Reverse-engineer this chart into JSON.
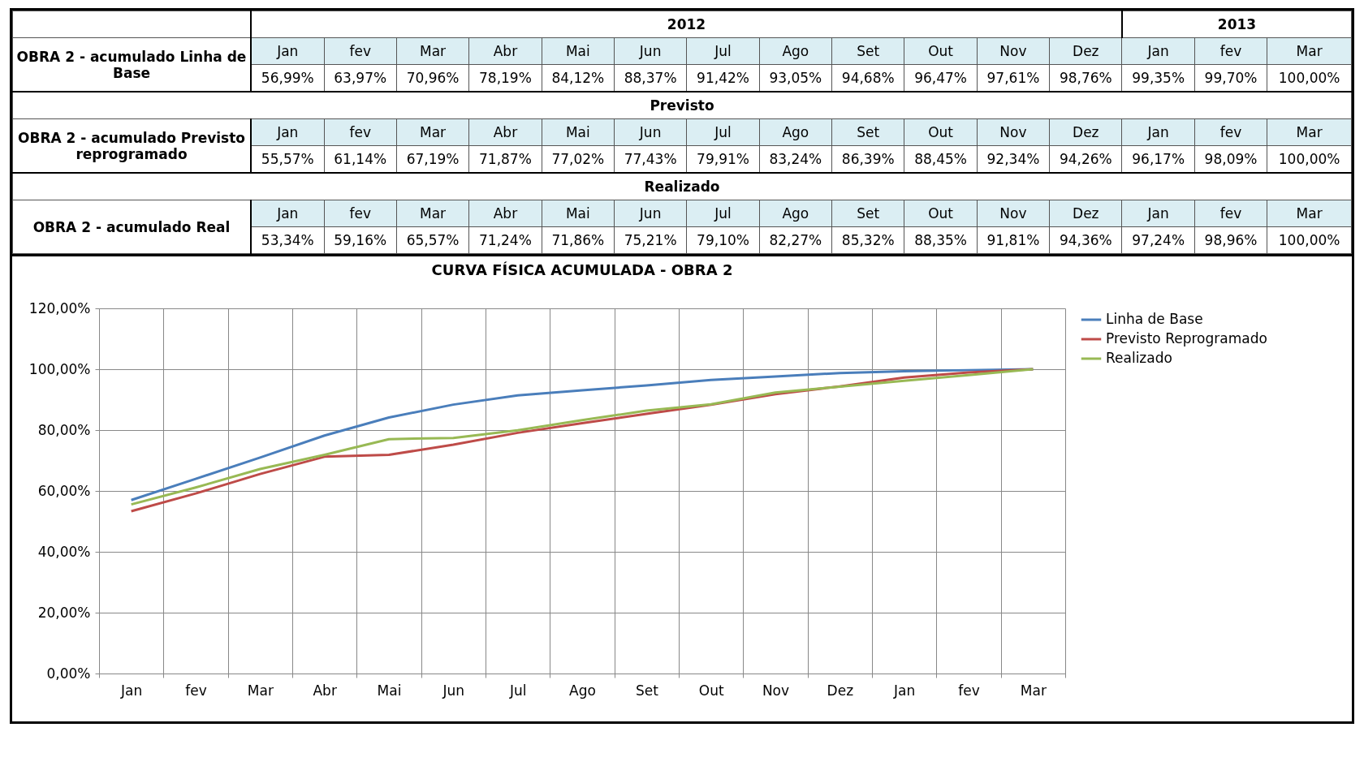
{
  "chart_data": [
    {
      "type": "other",
      "categories": [
        "Jan",
        "fev",
        "Mar",
        "Abr",
        "Mai",
        "Jun",
        "Jul",
        "Ago",
        "Set",
        "Out",
        "Nov",
        "Dez",
        "Jan",
        "fev",
        "Mar"
      ],
      "annotations": [
        "2012",
        "2013",
        "Previsto",
        "Realizado"
      ],
      "series": [
        {
          "name": "OBRA 2 - acumulado Linha de Base",
          "values": [
            56.99,
            63.97,
            70.96,
            78.19,
            84.12,
            88.37,
            91.42,
            93.05,
            94.68,
            96.47,
            97.61,
            98.76,
            99.35,
            99.7,
            100.0
          ],
          "value_labels": [
            "56,99%",
            "63,97%",
            "70,96%",
            "78,19%",
            "84,12%",
            "88,37%",
            "91,42%",
            "93,05%",
            "94,68%",
            "96,47%",
            "97,61%",
            "98,76%",
            "99,35%",
            "99,70%",
            "100,00%"
          ]
        },
        {
          "name": "OBRA 2 - acumulado Previsto reprogramado",
          "values": [
            55.57,
            61.14,
            67.19,
            71.87,
            77.02,
            77.43,
            79.91,
            83.24,
            86.39,
            88.45,
            92.34,
            94.26,
            96.17,
            98.09,
            100.0
          ],
          "value_labels": [
            "55,57%",
            "61,14%",
            "67,19%",
            "71,87%",
            "77,02%",
            "77,43%",
            "79,91%",
            "83,24%",
            "86,39%",
            "88,45%",
            "92,34%",
            "94,26%",
            "96,17%",
            "98,09%",
            "100,00%"
          ]
        },
        {
          "name": "OBRA 2 - acumulado Real",
          "values": [
            53.34,
            59.16,
            65.57,
            71.24,
            71.86,
            75.21,
            79.1,
            82.27,
            85.32,
            88.35,
            91.81,
            94.36,
            97.24,
            98.96,
            100.0
          ],
          "value_labels": [
            "53,34%",
            "59,16%",
            "65,57%",
            "71,24%",
            "71,86%",
            "75,21%",
            "79,10%",
            "82,27%",
            "85,32%",
            "88,35%",
            "91,81%",
            "94,36%",
            "97,24%",
            "98,96%",
            "100,00%"
          ]
        }
      ]
    },
    {
      "type": "line",
      "title": "CURVA FÍSICA ACUMULADA - OBRA 2",
      "categories": [
        "Jan",
        "fev",
        "Mar",
        "Abr",
        "Mai",
        "Jun",
        "Jul",
        "Ago",
        "Set",
        "Out",
        "Nov",
        "Dez",
        "Jan",
        "fev",
        "Mar"
      ],
      "series": [
        {
          "name": "Linha de Base",
          "color": "#4a7ebb",
          "values": [
            56.99,
            63.97,
            70.96,
            78.19,
            84.12,
            88.37,
            91.42,
            93.05,
            94.68,
            96.47,
            97.61,
            98.76,
            99.35,
            99.7,
            100.0
          ]
        },
        {
          "name": "Previsto Reprogramado",
          "color": "#be4b48",
          "values": [
            53.34,
            59.16,
            65.57,
            71.24,
            71.86,
            75.21,
            79.1,
            82.27,
            85.32,
            88.35,
            91.81,
            94.36,
            97.24,
            98.96,
            100.0
          ]
        },
        {
          "name": "Realizado",
          "color": "#98b954",
          "values": [
            55.57,
            61.14,
            67.19,
            71.87,
            77.02,
            77.43,
            79.91,
            83.24,
            86.39,
            88.45,
            92.34,
            94.26,
            96.17,
            98.09,
            100.0
          ]
        }
      ],
      "ylim": [
        0,
        120
      ],
      "yticks": [
        {
          "value": 0,
          "label": "0,00%"
        },
        {
          "value": 20,
          "label": "20,00%"
        },
        {
          "value": 40,
          "label": "40,00%"
        },
        {
          "value": 60,
          "label": "60,00%"
        },
        {
          "value": 80,
          "label": "80,00%"
        },
        {
          "value": 100,
          "label": "100,00%"
        },
        {
          "value": 120,
          "label": "120,00%"
        }
      ],
      "grid": true,
      "legend": "right",
      "marker": "none",
      "line_style": "solid"
    }
  ]
}
